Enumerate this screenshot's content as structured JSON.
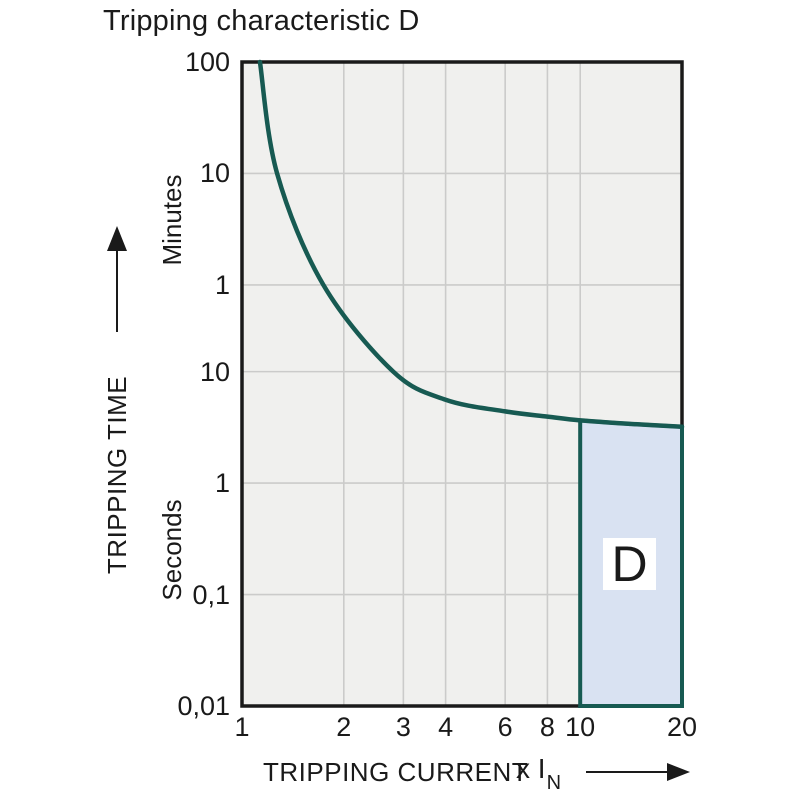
{
  "title": "Tripping characteristic D",
  "colors": {
    "page_bg": "#ffffff",
    "plot_bg": "#f0f0ee",
    "grid": "#cbcbca",
    "axis_border": "#1a1a1a",
    "text": "#1a1a1a",
    "curve": "#175a52",
    "region_fill": "#d9e2f2",
    "region_border": "#175a52",
    "region_label_bg": "#ffffff"
  },
  "chart_data": {
    "type": "line",
    "title": "Tripping characteristic D",
    "x_axis": {
      "label": "TRIPPING CURRENT",
      "unit_prefix": "x I",
      "unit_sub": "N",
      "scale": "log",
      "range": [
        1,
        20
      ],
      "ticks": [
        1,
        2,
        3,
        4,
        6,
        8,
        10,
        20
      ],
      "gridlines": [
        2,
        3,
        4,
        6,
        8,
        10
      ]
    },
    "y_axis": {
      "label": "TRIPPING TIME",
      "scale": "log",
      "unit_top": "Minutes",
      "unit_bottom": "Seconds",
      "range_seconds": [
        0.01,
        6000
      ],
      "ticks": [
        {
          "value_seconds": 6000,
          "label": "100"
        },
        {
          "value_seconds": 600,
          "label": "10"
        },
        {
          "value_seconds": 60,
          "label": "1"
        },
        {
          "value_seconds": 10,
          "label": "10"
        },
        {
          "value_seconds": 1,
          "label": "1"
        },
        {
          "value_seconds": 0.1,
          "label": "0,1"
        },
        {
          "value_seconds": 0.01,
          "label": "0,01"
        }
      ],
      "gridlines_seconds": [
        600,
        60,
        10,
        1,
        0.1
      ]
    },
    "series": [
      {
        "name": "tripping-curve",
        "points": [
          [
            1.13,
            6000
          ],
          [
            1.27,
            600
          ],
          [
            1.74,
            60
          ],
          [
            2.8,
            10
          ],
          [
            4.0,
            5.6
          ],
          [
            6.0,
            4.4
          ],
          [
            8.0,
            3.95
          ],
          [
            10.0,
            3.65
          ],
          [
            14.0,
            3.4
          ],
          [
            20.0,
            3.2
          ]
        ]
      }
    ],
    "region": {
      "label": "D",
      "x_range": [
        10,
        20
      ],
      "bottom_seconds": 0.01,
      "top_follows_curve": true
    },
    "legend": "none",
    "grid": true
  }
}
